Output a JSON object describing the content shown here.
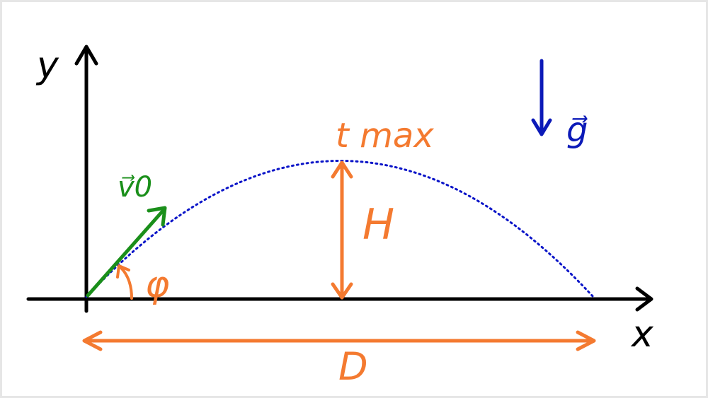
{
  "labels": {
    "y_axis": "y",
    "x_axis": "x",
    "velocity": "v⃗0",
    "angle": "φ",
    "height": "H",
    "t_max": "t max",
    "distance": "D",
    "gravity": "g⃗"
  },
  "colors": {
    "axes": "#000000",
    "trajectory": "#0a14c8",
    "velocity": "#1a8f1a",
    "annotation": "#f47a30",
    "gravity": "#0c1ab8"
  }
}
